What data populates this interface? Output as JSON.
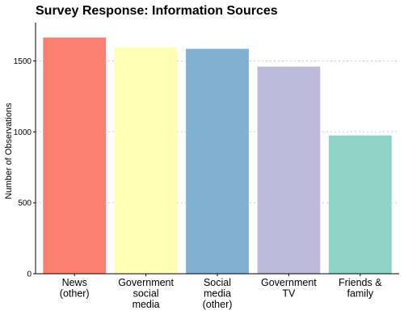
{
  "chart_data": {
    "type": "bar",
    "title": "Survey Response: Information Sources",
    "xlabel": "",
    "ylabel": "Number of Observations",
    "categories": [
      [
        "News",
        "(other)"
      ],
      [
        "Government",
        "social",
        "media"
      ],
      [
        "Social",
        "media",
        "(other)"
      ],
      [
        "Government",
        "TV"
      ],
      [
        "Friends &",
        "family"
      ]
    ],
    "values": [
      1665,
      1595,
      1585,
      1460,
      975
    ],
    "colors": [
      "#fb8072",
      "#ffffb3",
      "#80b1d3",
      "#bebada",
      "#8dd3c7"
    ],
    "ylim": [
      0,
      1770
    ],
    "yticks": [
      0,
      500,
      1000,
      1500
    ],
    "grid": true,
    "legend": "none"
  }
}
